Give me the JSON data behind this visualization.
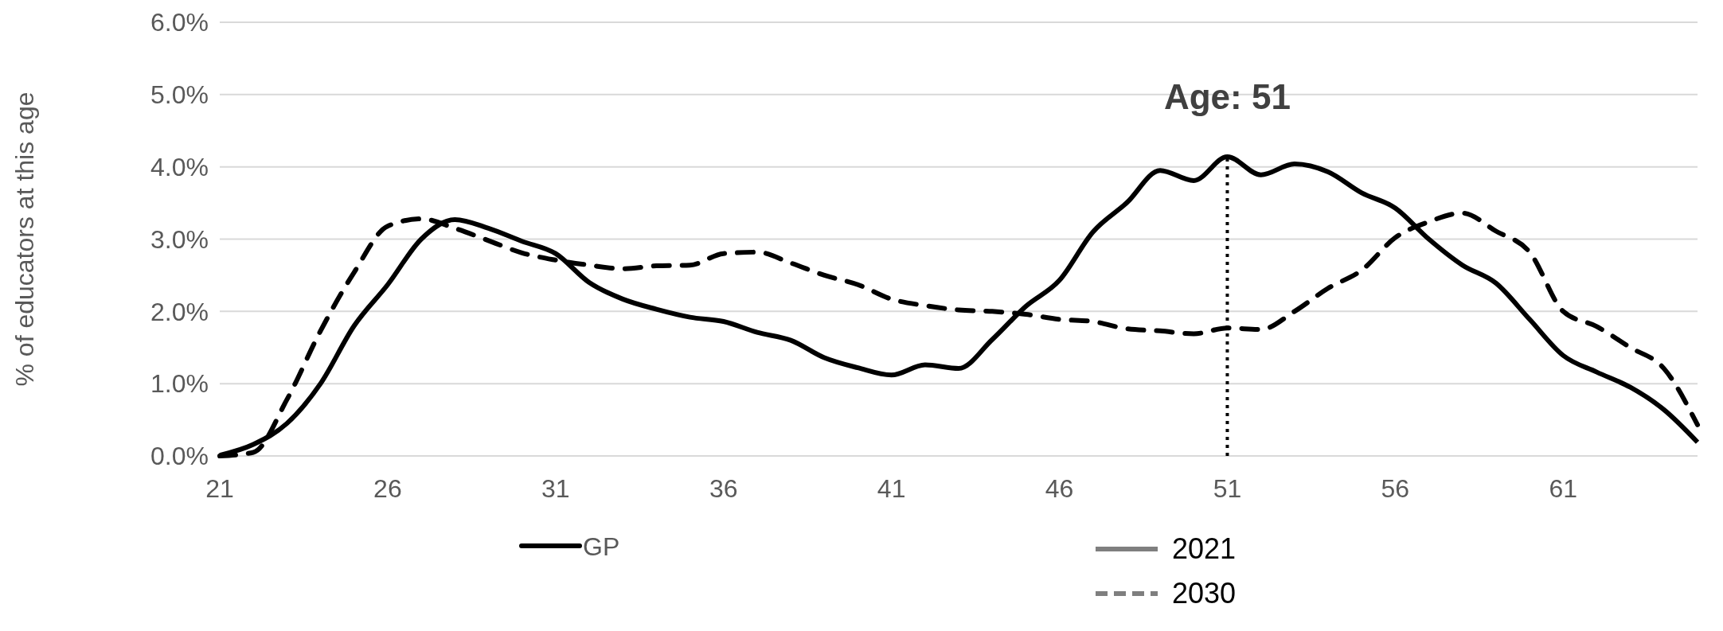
{
  "chart_data": {
    "type": "line",
    "ylabel": "% of educators at this age",
    "legend_title": "GP",
    "x": [
      21,
      22,
      23,
      24,
      25,
      26,
      27,
      28,
      29,
      30,
      31,
      32,
      33,
      34,
      35,
      36,
      37,
      38,
      39,
      40,
      41,
      42,
      43,
      44,
      45,
      46,
      47,
      48,
      49,
      50,
      51,
      52,
      53,
      54,
      55,
      56,
      57,
      58,
      59,
      60,
      61,
      62,
      63,
      64,
      65
    ],
    "xlim": [
      21,
      65
    ],
    "xticks": [
      21,
      26,
      31,
      36,
      41,
      46,
      51,
      56,
      61
    ],
    "ylim": [
      0,
      6
    ],
    "yticks": [
      {
        "value": 0,
        "label": "0.0%"
      },
      {
        "value": 1,
        "label": "1.0%"
      },
      {
        "value": 2,
        "label": "2.0%"
      },
      {
        "value": 3,
        "label": "3.0%"
      },
      {
        "value": 4,
        "label": "4.0%"
      },
      {
        "value": 5,
        "label": "5.0%"
      },
      {
        "value": 6,
        "label": "6.0%"
      }
    ],
    "grid": "y",
    "legend": "bottom",
    "series": [
      {
        "name": "2021",
        "color": "#000000",
        "line_style": "solid",
        "values": [
          0.01,
          0.16,
          0.45,
          1.0,
          1.8,
          2.37,
          3.0,
          3.27,
          3.15,
          2.97,
          2.8,
          2.4,
          2.17,
          2.03,
          1.92,
          1.86,
          1.71,
          1.6,
          1.36,
          1.22,
          1.12,
          1.26,
          1.21,
          1.61,
          2.07,
          2.43,
          3.1,
          3.5,
          3.95,
          3.81,
          4.14,
          3.89,
          4.04,
          3.93,
          3.64,
          3.43,
          3.0,
          2.64,
          2.39,
          1.89,
          1.39,
          1.16,
          0.95,
          0.64,
          0.19
        ]
      },
      {
        "name": "2030",
        "color": "#000000",
        "line_style": "dashed",
        "values": [
          0.0,
          0.05,
          0.78,
          1.73,
          2.54,
          3.18,
          3.28,
          3.15,
          2.98,
          2.81,
          2.71,
          2.64,
          2.59,
          2.63,
          2.64,
          2.8,
          2.82,
          2.67,
          2.5,
          2.37,
          2.17,
          2.08,
          2.02,
          2.0,
          1.96,
          1.89,
          1.86,
          1.76,
          1.73,
          1.69,
          1.77,
          1.75,
          2.0,
          2.32,
          2.57,
          3.02,
          3.24,
          3.36,
          3.11,
          2.82,
          2.0,
          1.79,
          1.5,
          1.21,
          0.43
        ]
      }
    ],
    "ref_lines": [
      {
        "axis": "x",
        "value": 51,
        "label": "Age: 51",
        "line_style": "dotted",
        "color": "#000000"
      }
    ]
  }
}
